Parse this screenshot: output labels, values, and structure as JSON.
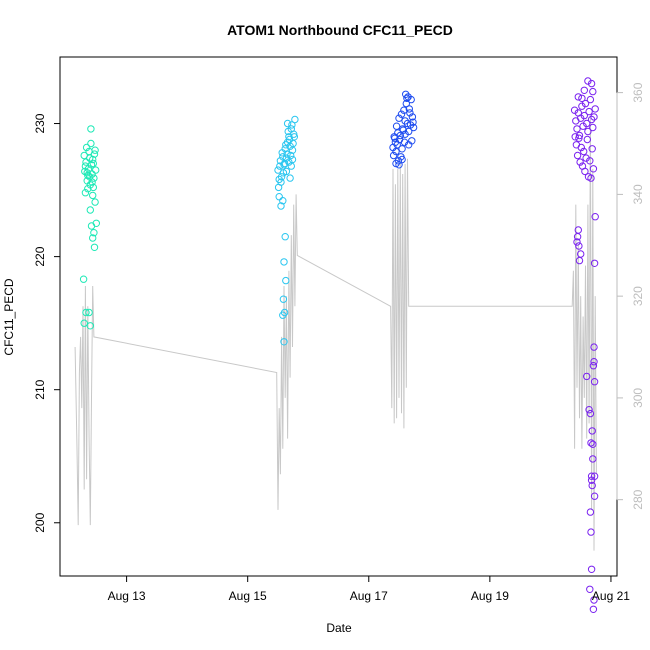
{
  "chart_data": {
    "type": "scatter",
    "title": "ATOM1 Northbound CFC11_PECD",
    "xlabel": "Date",
    "ylabel": "CFC11_PECD",
    "x_ticks": [
      "Aug 13",
      "Aug 15",
      "Aug 17",
      "Aug 19",
      "Aug 21"
    ],
    "x_tick_values": [
      13,
      15,
      17,
      19,
      21
    ],
    "x_range": [
      11.9,
      21.1
    ],
    "y_ticks": [
      200,
      210,
      220,
      230
    ],
    "y_range": [
      196,
      235
    ],
    "y2_ticks": [
      280,
      300,
      320,
      340,
      360
    ],
    "y2_range": [
      265,
      367
    ],
    "grid": false,
    "colors": {
      "gray_line": "#c8c8c8",
      "right_axis": "#bdbdbd"
    },
    "series": [
      {
        "color": "#1de9b6",
        "points": [
          [
            12.3,
            227.6
          ],
          [
            12.32,
            226.8
          ],
          [
            12.34,
            228.2
          ],
          [
            12.36,
            226.1
          ],
          [
            12.38,
            227.9
          ],
          [
            12.4,
            225.4
          ],
          [
            12.42,
            226.9
          ],
          [
            12.44,
            227.3
          ],
          [
            12.46,
            225.9
          ],
          [
            12.48,
            228.0
          ],
          [
            12.31,
            226.4
          ],
          [
            12.33,
            227.1
          ],
          [
            12.35,
            225.7
          ],
          [
            12.37,
            226.6
          ],
          [
            12.39,
            227.4
          ],
          [
            12.41,
            228.5
          ],
          [
            12.43,
            226.2
          ],
          [
            12.45,
            225.2
          ],
          [
            12.47,
            227.7
          ],
          [
            12.49,
            226.5
          ],
          [
            12.32,
            224.8
          ],
          [
            12.36,
            225.1
          ],
          [
            12.4,
            223.5
          ],
          [
            12.44,
            224.6
          ],
          [
            12.48,
            224.1
          ],
          [
            12.42,
            222.3
          ],
          [
            12.46,
            221.8
          ],
          [
            12.5,
            222.5
          ],
          [
            12.47,
            220.7
          ],
          [
            12.44,
            221.4
          ],
          [
            12.29,
            218.3
          ],
          [
            12.33,
            215.8
          ],
          [
            12.3,
            215.0
          ],
          [
            12.38,
            215.8
          ],
          [
            12.4,
            214.8
          ],
          [
            12.41,
            229.6
          ],
          [
            12.45,
            227.0
          ],
          [
            12.35,
            226.3
          ],
          [
            12.43,
            225.6
          ],
          [
            12.39,
            226.0
          ]
        ]
      },
      {
        "color": "#29c6f0",
        "points": [
          [
            15.5,
            226.5
          ],
          [
            15.52,
            225.8
          ],
          [
            15.54,
            227.2
          ],
          [
            15.56,
            226.0
          ],
          [
            15.58,
            227.5
          ],
          [
            15.6,
            226.9
          ],
          [
            15.62,
            228.1
          ],
          [
            15.64,
            227.4
          ],
          [
            15.66,
            228.6
          ],
          [
            15.68,
            229.0
          ],
          [
            15.7,
            228.3
          ],
          [
            15.72,
            229.6
          ],
          [
            15.74,
            228.0
          ],
          [
            15.76,
            229.2
          ],
          [
            15.78,
            230.3
          ],
          [
            15.51,
            225.2
          ],
          [
            15.53,
            226.8
          ],
          [
            15.55,
            225.6
          ],
          [
            15.57,
            227.8
          ],
          [
            15.59,
            226.3
          ],
          [
            15.61,
            227.0
          ],
          [
            15.63,
            228.4
          ],
          [
            15.65,
            227.7
          ],
          [
            15.67,
            229.4
          ],
          [
            15.69,
            228.8
          ],
          [
            15.71,
            227.6
          ],
          [
            15.73,
            229.9
          ],
          [
            15.75,
            228.5
          ],
          [
            15.77,
            229.0
          ],
          [
            15.66,
            230.0
          ],
          [
            15.52,
            224.5
          ],
          [
            15.55,
            223.8
          ],
          [
            15.58,
            224.2
          ],
          [
            15.62,
            221.5
          ],
          [
            15.6,
            219.6
          ],
          [
            15.63,
            218.2
          ],
          [
            15.59,
            216.8
          ],
          [
            15.61,
            215.8
          ],
          [
            15.58,
            215.6
          ],
          [
            15.6,
            213.6
          ],
          [
            15.64,
            226.4
          ],
          [
            15.68,
            227.1
          ],
          [
            15.72,
            226.8
          ],
          [
            15.7,
            225.9
          ],
          [
            15.74,
            227.3
          ]
        ]
      },
      {
        "color": "#1e4cf0",
        "points": [
          [
            17.4,
            228.2
          ],
          [
            17.42,
            229.0
          ],
          [
            17.44,
            228.6
          ],
          [
            17.46,
            229.8
          ],
          [
            17.48,
            229.3
          ],
          [
            17.5,
            230.4
          ],
          [
            17.52,
            229.1
          ],
          [
            17.54,
            230.7
          ],
          [
            17.56,
            229.6
          ],
          [
            17.58,
            231.0
          ],
          [
            17.6,
            230.2
          ],
          [
            17.62,
            231.5
          ],
          [
            17.64,
            230.0
          ],
          [
            17.66,
            229.4
          ],
          [
            17.68,
            230.8
          ],
          [
            17.7,
            231.8
          ],
          [
            17.72,
            230.5
          ],
          [
            17.74,
            229.7
          ],
          [
            17.41,
            227.6
          ],
          [
            17.43,
            228.9
          ],
          [
            17.45,
            227.9
          ],
          [
            17.47,
            228.4
          ],
          [
            17.49,
            227.2
          ],
          [
            17.51,
            228.8
          ],
          [
            17.53,
            227.5
          ],
          [
            17.55,
            228.1
          ],
          [
            17.57,
            229.5
          ],
          [
            17.59,
            228.6
          ],
          [
            17.61,
            232.2
          ],
          [
            17.63,
            231.9
          ],
          [
            17.65,
            232.0
          ],
          [
            17.67,
            231.1
          ],
          [
            17.69,
            229.9
          ],
          [
            17.71,
            228.7
          ],
          [
            17.73,
            230.1
          ],
          [
            17.45,
            227.0
          ],
          [
            17.5,
            226.9
          ],
          [
            17.55,
            227.3
          ],
          [
            17.6,
            229.2
          ],
          [
            17.66,
            228.4
          ]
        ]
      },
      {
        "color": "#7a22f0",
        "points": [
          [
            20.4,
            231.0
          ],
          [
            20.42,
            230.2
          ],
          [
            20.44,
            229.6
          ],
          [
            20.46,
            230.8
          ],
          [
            20.48,
            229.1
          ],
          [
            20.5,
            230.4
          ],
          [
            20.52,
            231.3
          ],
          [
            20.54,
            229.8
          ],
          [
            20.56,
            230.6
          ],
          [
            20.58,
            231.5
          ],
          [
            20.6,
            230.0
          ],
          [
            20.62,
            229.4
          ],
          [
            20.64,
            230.9
          ],
          [
            20.66,
            231.8
          ],
          [
            20.68,
            230.3
          ],
          [
            20.7,
            229.7
          ],
          [
            20.72,
            230.5
          ],
          [
            20.74,
            231.1
          ],
          [
            20.41,
            229.0
          ],
          [
            20.43,
            228.4
          ],
          [
            20.45,
            227.6
          ],
          [
            20.47,
            228.9
          ],
          [
            20.49,
            227.1
          ],
          [
            20.51,
            228.2
          ],
          [
            20.53,
            226.8
          ],
          [
            20.55,
            227.9
          ],
          [
            20.57,
            226.4
          ],
          [
            20.59,
            227.4
          ],
          [
            20.61,
            228.8
          ],
          [
            20.63,
            226.0
          ],
          [
            20.65,
            227.2
          ],
          [
            20.67,
            225.9
          ],
          [
            20.69,
            228.1
          ],
          [
            20.71,
            226.6
          ],
          [
            20.62,
            233.2
          ],
          [
            20.68,
            233.0
          ],
          [
            20.56,
            232.5
          ],
          [
            20.46,
            232.0
          ],
          [
            20.7,
            232.4
          ],
          [
            20.52,
            231.9
          ],
          [
            20.45,
            221.5
          ],
          [
            20.47,
            220.8
          ],
          [
            20.48,
            219.7
          ],
          [
            20.5,
            220.2
          ],
          [
            20.46,
            222.0
          ],
          [
            20.44,
            221.1
          ],
          [
            20.73,
            219.5
          ],
          [
            20.74,
            223.0
          ],
          [
            20.73,
            210.6
          ],
          [
            20.71,
            211.8
          ],
          [
            20.72,
            212.1
          ],
          [
            20.72,
            213.2
          ],
          [
            20.73,
            203.5
          ],
          [
            20.73,
            202.0
          ],
          [
            20.66,
            208.2
          ],
          [
            20.6,
            211.0
          ],
          [
            20.64,
            208.5
          ],
          [
            20.7,
            204.8
          ],
          [
            20.69,
            206.9
          ],
          [
            20.7,
            205.9
          ],
          [
            20.67,
            206.0
          ],
          [
            20.68,
            203.2
          ],
          [
            20.69,
            202.8
          ],
          [
            20.68,
            203.5
          ],
          [
            20.68,
            196.5
          ],
          [
            20.71,
            193.5
          ],
          [
            20.65,
            195.0
          ],
          [
            20.72,
            194.2
          ],
          [
            20.66,
            200.8
          ],
          [
            20.67,
            199.3
          ]
        ]
      }
    ],
    "line_series": {
      "axis": "right",
      "points": [
        [
          12.15,
          310
        ],
        [
          12.18,
          290
        ],
        [
          12.2,
          275
        ],
        [
          12.22,
          305
        ],
        [
          12.24,
          312
        ],
        [
          12.26,
          298
        ],
        [
          12.28,
          318
        ],
        [
          12.3,
          282
        ],
        [
          12.32,
          322
        ],
        [
          12.34,
          284
        ],
        [
          12.36,
          318
        ],
        [
          12.38,
          292
        ],
        [
          12.4,
          275
        ],
        [
          12.42,
          300
        ],
        [
          12.44,
          322
        ],
        [
          12.46,
          312
        ],
        [
          15.48,
          305
        ],
        [
          15.5,
          278
        ],
        [
          15.52,
          298
        ],
        [
          15.54,
          285
        ],
        [
          15.56,
          312
        ],
        [
          15.58,
          290
        ],
        [
          15.6,
          322
        ],
        [
          15.62,
          300
        ],
        [
          15.64,
          320
        ],
        [
          15.66,
          292
        ],
        [
          15.68,
          325
        ],
        [
          15.7,
          304
        ],
        [
          15.72,
          332
        ],
        [
          15.74,
          310
        ],
        [
          15.76,
          338
        ],
        [
          15.78,
          318
        ],
        [
          15.8,
          340
        ],
        [
          15.82,
          328
        ],
        [
          17.36,
          318
        ],
        [
          17.38,
          298
        ],
        [
          17.4,
          345
        ],
        [
          17.42,
          295
        ],
        [
          17.44,
          342
        ],
        [
          17.46,
          296
        ],
        [
          17.48,
          345
        ],
        [
          17.5,
          300
        ],
        [
          17.52,
          346
        ],
        [
          17.54,
          297
        ],
        [
          17.56,
          344
        ],
        [
          17.58,
          294
        ],
        [
          17.6,
          346
        ],
        [
          17.62,
          302
        ],
        [
          17.64,
          347
        ],
        [
          17.66,
          318
        ],
        [
          20.36,
          318
        ],
        [
          20.38,
          325
        ],
        [
          20.4,
          290
        ],
        [
          20.42,
          338
        ],
        [
          20.44,
          302
        ],
        [
          20.46,
          330
        ],
        [
          20.48,
          296
        ],
        [
          20.5,
          320
        ],
        [
          20.52,
          290
        ],
        [
          20.54,
          316
        ],
        [
          20.56,
          300
        ],
        [
          20.58,
          326
        ],
        [
          20.6,
          292
        ],
        [
          20.62,
          338
        ],
        [
          20.64,
          295
        ],
        [
          20.66,
          355
        ],
        [
          20.68,
          278
        ],
        [
          20.7,
          345
        ],
        [
          20.72,
          270
        ],
        [
          20.74,
          320
        ],
        [
          20.76,
          285
        ]
      ]
    }
  }
}
